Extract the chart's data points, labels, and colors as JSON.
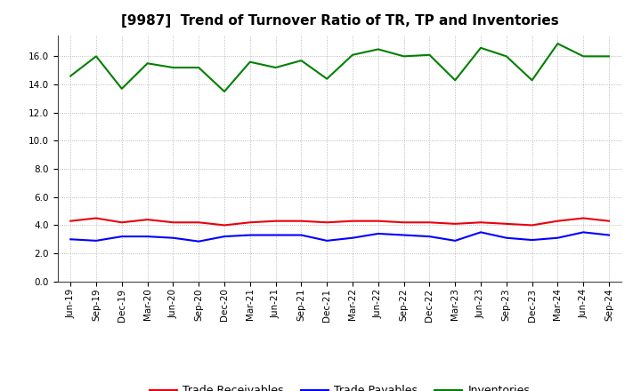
{
  "title": "[9987]  Trend of Turnover Ratio of TR, TP and Inventories",
  "x_labels": [
    "Jun-19",
    "Sep-19",
    "Dec-19",
    "Mar-20",
    "Jun-20",
    "Sep-20",
    "Dec-20",
    "Mar-21",
    "Jun-21",
    "Sep-21",
    "Dec-21",
    "Mar-22",
    "Jun-22",
    "Sep-22",
    "Dec-22",
    "Mar-23",
    "Jun-23",
    "Sep-23",
    "Dec-23",
    "Mar-24",
    "Jun-24",
    "Sep-24"
  ],
  "trade_receivables": [
    4.3,
    4.5,
    4.2,
    4.4,
    4.2,
    4.2,
    4.0,
    4.2,
    4.3,
    4.3,
    4.2,
    4.3,
    4.3,
    4.2,
    4.2,
    4.1,
    4.2,
    4.1,
    4.0,
    4.3,
    4.5,
    4.3
  ],
  "trade_payables": [
    3.0,
    2.9,
    3.2,
    3.2,
    3.1,
    2.85,
    3.2,
    3.3,
    3.3,
    3.3,
    2.9,
    3.1,
    3.4,
    3.3,
    3.2,
    2.9,
    3.5,
    3.1,
    2.95,
    3.1,
    3.5,
    3.3
  ],
  "inventories": [
    14.6,
    16.0,
    13.7,
    15.5,
    15.2,
    15.2,
    13.5,
    15.6,
    15.2,
    15.7,
    14.4,
    16.1,
    16.5,
    16.0,
    16.1,
    14.3,
    16.6,
    16.0,
    14.3,
    16.9,
    16.0,
    16.0
  ],
  "ylim": [
    0,
    17.5
  ],
  "yticks": [
    0.0,
    2.0,
    4.0,
    6.0,
    8.0,
    10.0,
    12.0,
    14.0,
    16.0
  ],
  "line_color_tr": "#e8000d",
  "line_color_tp": "#0000ff",
  "line_color_inv": "#008000",
  "legend_labels": [
    "Trade Receivables",
    "Trade Payables",
    "Inventories"
  ],
  "background_color": "#ffffff",
  "grid_color": "#aaaaaa",
  "title_fontsize": 11,
  "tick_fontsize": 7.5,
  "legend_fontsize": 9
}
